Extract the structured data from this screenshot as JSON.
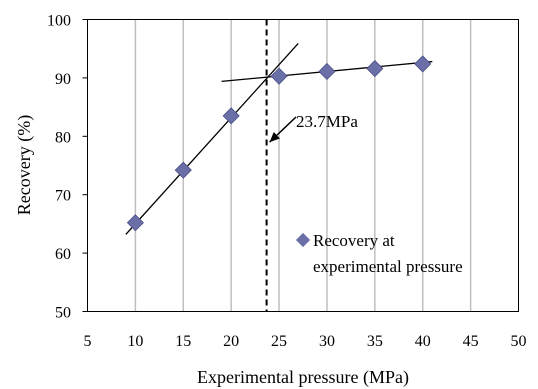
{
  "chart_data": {
    "type": "scatter",
    "xlabel": "Experimental pressure (MPa)",
    "ylabel": "Recovery (%)",
    "xlim": [
      5,
      50
    ],
    "ylim": [
      50,
      100
    ],
    "x_ticks": [
      "5",
      "10",
      "15",
      "20",
      "25",
      "30",
      "35",
      "40",
      "45",
      "50"
    ],
    "y_ticks": [
      "50",
      "60",
      "70",
      "80",
      "90",
      "100"
    ],
    "grid": "vertical",
    "series": [
      {
        "name": "Recovery at experimental pressure",
        "x": [
          10,
          15,
          20,
          25,
          30,
          35,
          40
        ],
        "y": [
          65.2,
          74.2,
          83.5,
          90.3,
          91.1,
          91.6,
          92.4
        ],
        "color": "#6b6fa8",
        "marker": "diamond"
      }
    ],
    "trend_lines": [
      {
        "x": [
          9,
          27
        ],
        "y": [
          63.2,
          95.9
        ]
      },
      {
        "x": [
          19,
          41
        ],
        "y": [
          89.4,
          92.8
        ]
      }
    ],
    "vline": {
      "x": 23.7,
      "style": "dashed"
    },
    "annotation": {
      "text": "23.7MPa",
      "arrow_to": [
        23.7,
        79
      ]
    },
    "legend": {
      "placement": "lower-right",
      "line1": "Recovery at",
      "line2": "experimental pressure"
    }
  }
}
